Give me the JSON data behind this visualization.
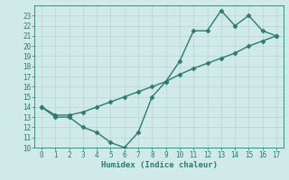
{
  "xlabel": "Humidex (Indice chaleur)",
  "x_series": [
    0,
    1,
    2,
    3,
    4,
    5,
    6,
    7,
    8,
    9,
    10,
    11,
    12,
    13,
    14,
    15,
    16,
    17
  ],
  "y_curve1": [
    14,
    13,
    13,
    12,
    11.5,
    10.5,
    10,
    11.5,
    15,
    16.5,
    18.5,
    21.5,
    21.5,
    23.5,
    22,
    23,
    21.5,
    21
  ],
  "y_line2": [
    14,
    13.2,
    13.2,
    13.5,
    14.0,
    14.5,
    15.0,
    15.5,
    16.0,
    16.5,
    17.2,
    17.8,
    18.3,
    18.8,
    19.3,
    20.0,
    20.5,
    21
  ],
  "xlim": [
    -0.5,
    17.5
  ],
  "ylim": [
    10,
    24
  ],
  "yticks": [
    10,
    11,
    12,
    13,
    14,
    15,
    16,
    17,
    18,
    19,
    20,
    21,
    22,
    23
  ],
  "xticks": [
    0,
    1,
    2,
    3,
    4,
    5,
    6,
    7,
    8,
    9,
    10,
    11,
    12,
    13,
    14,
    15,
    16,
    17
  ],
  "line_color": "#2d7a6e",
  "bg_color": "#d0eaea",
  "grid_color": "#b8d4d4",
  "markersize": 2.5,
  "linewidth": 1.0,
  "tick_labelsize": 5.5,
  "xlabel_fontsize": 6.5
}
